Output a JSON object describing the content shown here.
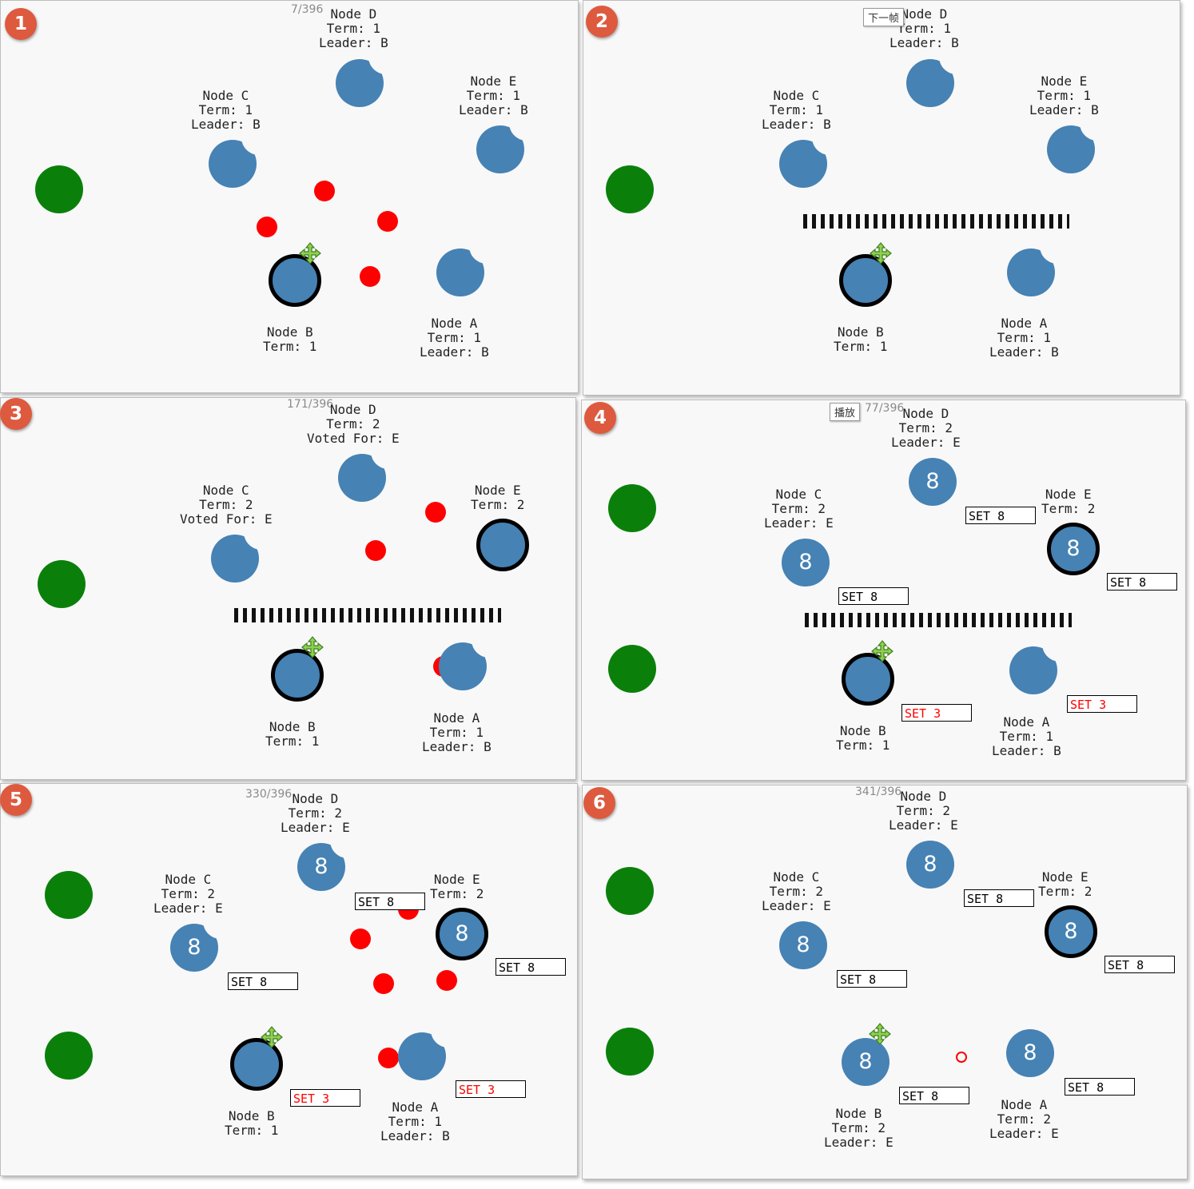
{
  "colors": {
    "node": "#4682b4",
    "client": "#0a800a",
    "message": "#ff0000",
    "badge": "#dd5a3f",
    "panel": "#f8f8f8"
  },
  "panels": [
    {
      "badge": "1",
      "frame": "7/396",
      "labels": {
        "D": "Node D\nTerm: 1\nLeader: B",
        "C": "Node C\nTerm: 1\nLeader: B",
        "E": "Node E\nTerm: 1\nLeader: B",
        "B": "Node B\nTerm: 1",
        "A": "Node A\nTerm: 1\nLeader: B"
      },
      "values": {
        "D": "",
        "C": "",
        "E": "",
        "B": "",
        "A": ""
      }
    },
    {
      "badge": "2",
      "frame": "",
      "button": "下一帧",
      "labels": {
        "D": "Node D\nTerm: 1\nLeader: B",
        "C": "Node C\nTerm: 1\nLeader: B",
        "E": "Node E\nTerm: 1\nLeader: B",
        "B": "Node B\nTerm: 1",
        "A": "Node A\nTerm: 1\nLeader: B"
      },
      "values": {
        "D": "",
        "C": "",
        "E": "",
        "B": "",
        "A": ""
      }
    },
    {
      "badge": "3",
      "frame": "171/396",
      "labels": {
        "D": "Node D\nTerm: 2\nVoted For: E",
        "C": "Node C\nTerm: 2\nVoted For: E",
        "E": "Node E\nTerm: 2",
        "B": "Node B\nTerm: 1",
        "A": "Node A\nTerm: 1\nLeader: B"
      },
      "values": {
        "D": "",
        "C": "",
        "E": "",
        "B": "",
        "A": ""
      }
    },
    {
      "badge": "4",
      "frame": "77/396",
      "button": "播放",
      "labels": {
        "D": "Node D\nTerm: 2\nLeader: E",
        "C": "Node C\nTerm: 2\nLeader: E",
        "E": "Node E\nTerm: 2",
        "B": "Node B\nTerm: 1",
        "A": "Node A\nTerm: 1\nLeader: B"
      },
      "values": {
        "D": "8",
        "C": "8",
        "E": "8",
        "B": "",
        "A": ""
      },
      "logs": {
        "D": "SET 8",
        "C": "SET 8",
        "E": "SET 8",
        "B": "SET 3",
        "A": "SET 3"
      }
    },
    {
      "badge": "5",
      "frame": "330/396",
      "labels": {
        "D": "Node D\nTerm: 2\nLeader: E",
        "C": "Node C\nTerm: 2\nLeader: E",
        "E": "Node E\nTerm: 2",
        "B": "Node B\nTerm: 1",
        "A": "Node A\nTerm: 1\nLeader: B"
      },
      "values": {
        "D": "8",
        "C": "8",
        "E": "8",
        "B": "",
        "A": ""
      },
      "logs": {
        "D": "SET 8",
        "C": "SET 8",
        "E": "SET 8",
        "B": "SET 3",
        "A": "SET 3"
      }
    },
    {
      "badge": "6",
      "frame": "341/396",
      "labels": {
        "D": "Node D\nTerm: 2\nLeader: E",
        "C": "Node C\nTerm: 2\nLeader: E",
        "E": "Node E\nTerm: 2",
        "B": "Node B\nTerm: 2\nLeader: E",
        "A": "Node A\nTerm: 2\nLeader: E"
      },
      "values": {
        "D": "8",
        "C": "8",
        "E": "8",
        "B": "8",
        "A": "8"
      },
      "logs": {
        "D": "SET 8",
        "C": "SET 8",
        "E": "SET 8",
        "B": "SET 8",
        "A": "SET 8"
      }
    }
  ]
}
